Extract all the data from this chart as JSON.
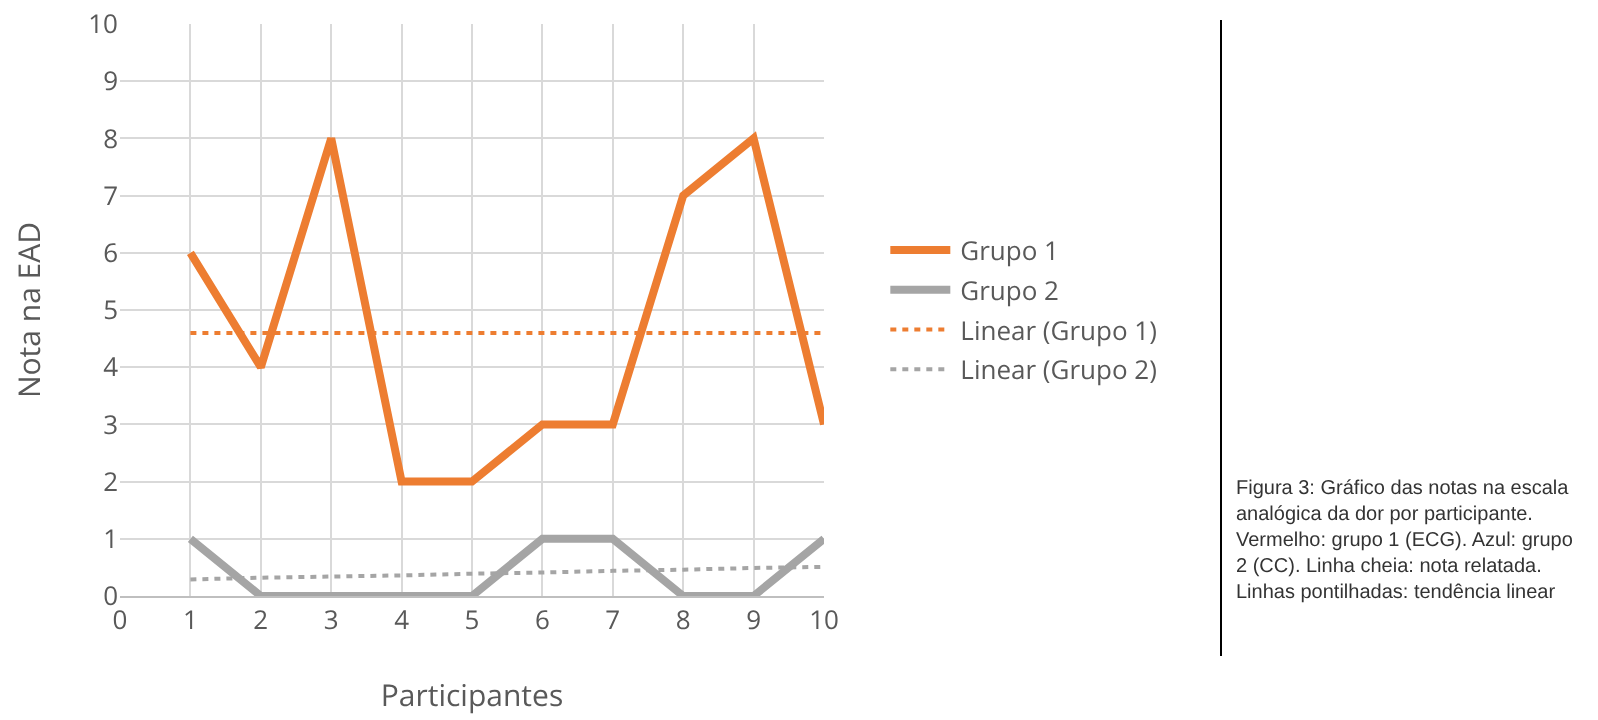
{
  "chart_data": {
    "type": "line",
    "xlabel": "Participantes",
    "ylabel": "Nota na EAD",
    "x": [
      1,
      2,
      3,
      4,
      5,
      6,
      7,
      8,
      9,
      10
    ],
    "series": [
      {
        "name": "Grupo 1",
        "color": "#ed7d31",
        "values": [
          6,
          4,
          8,
          2,
          2,
          3,
          3,
          7,
          8,
          3
        ]
      },
      {
        "name": "Grupo 2",
        "color": "#a5a5a5",
        "values": [
          1,
          0,
          0,
          0,
          0,
          1,
          1,
          0,
          0,
          1
        ]
      },
      {
        "name": "Linear (Grupo 1)",
        "color": "#ed7d31",
        "values": [
          4.6,
          4.6,
          4.6,
          4.6,
          4.6,
          4.6,
          4.6,
          4.6,
          4.6,
          4.6
        ],
        "line_style": "dotted"
      },
      {
        "name": "Linear (Grupo 2)",
        "color": "#a5a5a5",
        "values": [
          0.29,
          0.32,
          0.34,
          0.36,
          0.39,
          0.41,
          0.44,
          0.46,
          0.49,
          0.51
        ],
        "line_style": "dotted"
      }
    ],
    "xlim": [
      0,
      10
    ],
    "xticks": [
      0,
      1,
      2,
      3,
      4,
      5,
      6,
      7,
      8,
      9,
      10
    ],
    "ylim": [
      0,
      10
    ],
    "yticks": [
      0,
      1,
      2,
      3,
      4,
      5,
      6,
      7,
      8,
      9,
      10
    ],
    "grid": true,
    "legend": "right",
    "marker": "none",
    "line_style": "solid",
    "annotations": [
      "Figura 3:  Gráfico das notas na escala analógica da dor por participante. Vermelho: grupo 1 (ECG). Azul: grupo 2 (CC). Linha cheia: nota relatada. Linhas pontilhadas: tendência linear"
    ]
  }
}
